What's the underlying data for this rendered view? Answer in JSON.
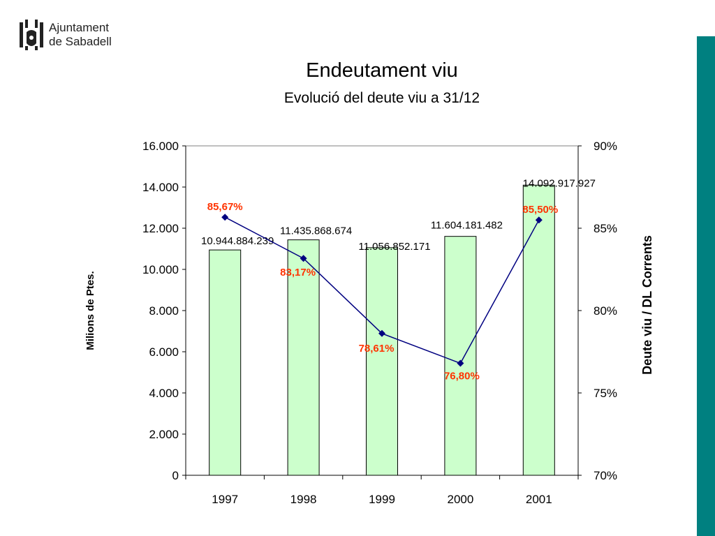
{
  "header": {
    "logo_line1": "Ajuntament",
    "logo_line2": "de Sabadell",
    "title": "Endeutament viu",
    "subtitle": "Evolució del deute viu a 31/12"
  },
  "colors": {
    "bar_fill": "#ccffcc",
    "line": "#000080",
    "pct_label": "#ff3300",
    "accent_bar": "#008080"
  },
  "chart_data": {
    "type": "bar",
    "categories": [
      "1997",
      "1998",
      "1999",
      "2000",
      "2001"
    ],
    "bar_series": {
      "values": [
        10944.884239,
        11435.868674,
        11056.852171,
        11604.181482,
        14092.917927
      ],
      "labels": [
        "10.944.884.239",
        "11.435.868.674",
        "11.056.852.171",
        "11.604.181.482",
        "14.092.917.927"
      ]
    },
    "line_series": {
      "values": [
        85.67,
        83.17,
        78.61,
        76.8,
        85.5
      ],
      "labels": [
        "85,67%",
        "83,17%",
        "78,61%",
        "76,80%",
        "85,50%"
      ]
    },
    "ylabel": "Milions de Ptes.",
    "y2label": "Deute viu / DL Corrents",
    "ylim": [
      0,
      16000
    ],
    "y2lim": [
      70,
      90
    ],
    "yticks": [
      "0",
      "2.000",
      "4.000",
      "6.000",
      "8.000",
      "10.000",
      "12.000",
      "14.000",
      "16.000"
    ],
    "y2ticks": [
      "70%",
      "75%",
      "80%",
      "85%",
      "90%"
    ],
    "grid": false
  }
}
